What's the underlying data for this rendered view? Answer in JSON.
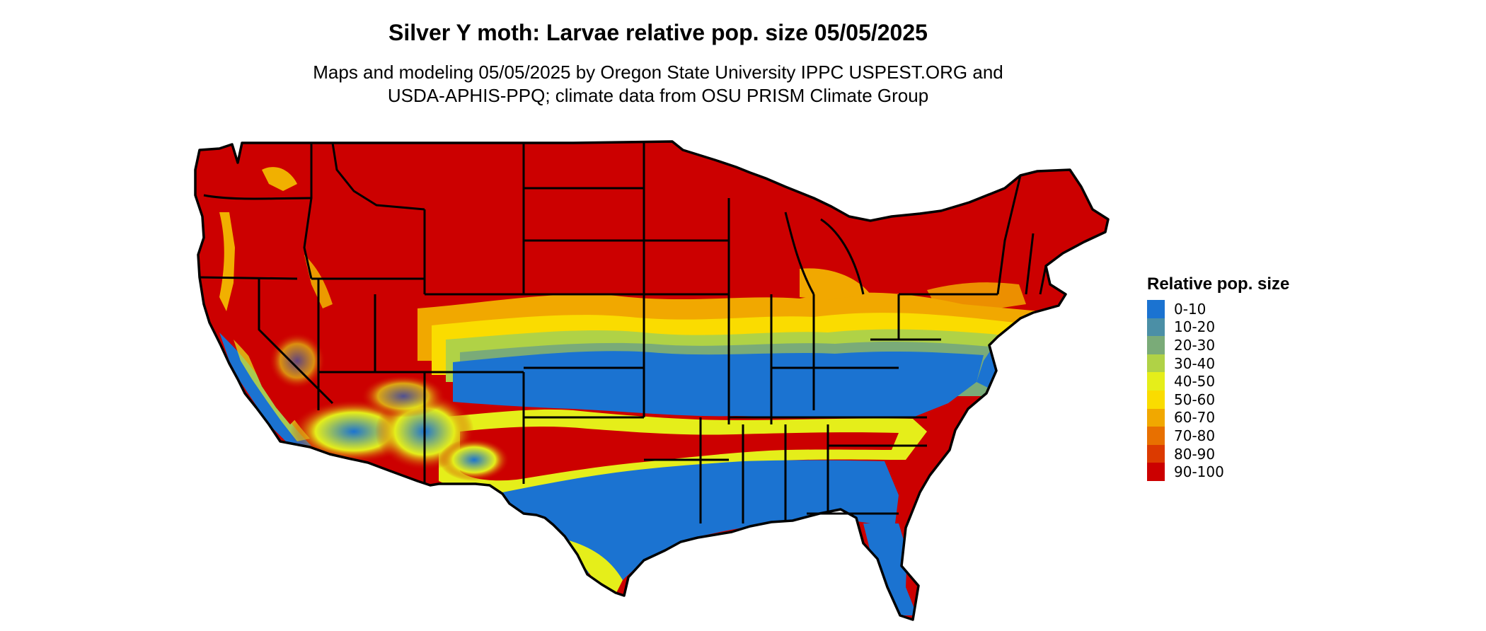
{
  "title": "Silver Y moth: Larvae relative pop. size 05/05/2025",
  "subtitle_line1": "Maps and modeling 05/05/2025 by Oregon State University IPPC USPEST.ORG and",
  "subtitle_line2": "USDA-APHIS-PPQ; climate data from OSU PRISM Climate Group",
  "legend": {
    "title": "Relative pop. size",
    "items": [
      {
        "label": "0-10",
        "color": "#1b73d1"
      },
      {
        "label": "10-20",
        "color": "#4b8fa6"
      },
      {
        "label": "20-30",
        "color": "#7aab78"
      },
      {
        "label": "30-40",
        "color": "#b0d246"
      },
      {
        "label": "40-50",
        "color": "#e5ee1a"
      },
      {
        "label": "50-60",
        "color": "#fadc00"
      },
      {
        "label": "60-70",
        "color": "#f1a800"
      },
      {
        "label": "70-80",
        "color": "#e87000"
      },
      {
        "label": "80-90",
        "color": "#dc3a00"
      },
      {
        "label": "90-100",
        "color": "#cc0000"
      }
    ]
  },
  "map": {
    "region": "Contiguous United States",
    "base_color": "#cc0000",
    "border_color": "#000000"
  }
}
